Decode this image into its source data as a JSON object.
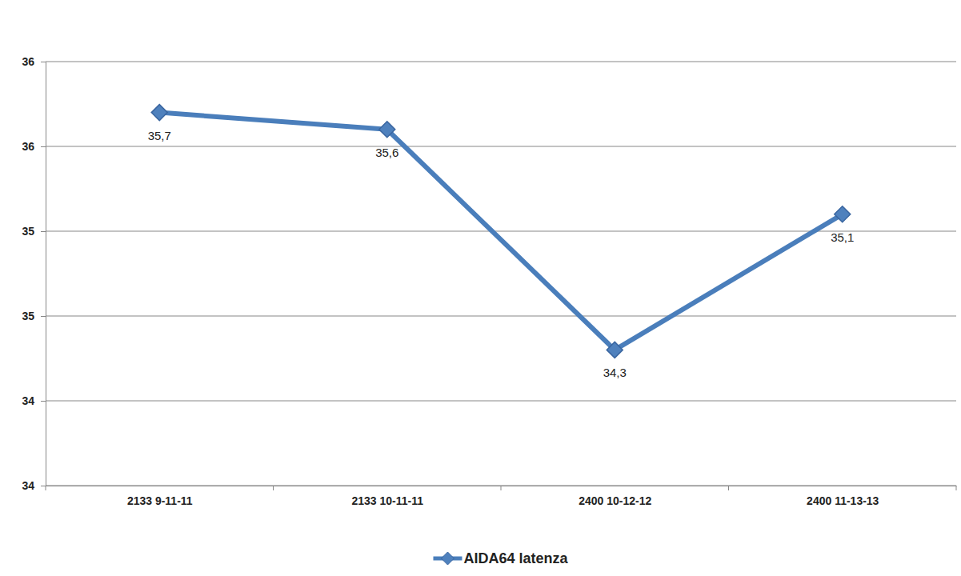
{
  "chart_data": {
    "type": "line",
    "categories": [
      "2133 9-11-11",
      "2133 10-11-11",
      "2400 10-12-12",
      "2400 11-13-13"
    ],
    "series": [
      {
        "name": "AIDA64 latenza",
        "color": "#4a7ebb",
        "values": [
          35.7,
          35.6,
          34.3,
          35.1
        ],
        "value_labels": [
          "35,7",
          "35,6",
          "34,3",
          "35,1"
        ],
        "marker": "diamond",
        "line_style": "solid"
      }
    ],
    "ylim": [
      33.5,
      36
    ],
    "yticks": [
      {
        "value": 33.5,
        "label": "34"
      },
      34,
      {
        "value": 34.5,
        "label": "35"
      },
      35,
      {
        "value": 35.5,
        "label": "36"
      },
      36
    ],
    "grid": true,
    "legend": "bottom",
    "data_labels": true
  }
}
